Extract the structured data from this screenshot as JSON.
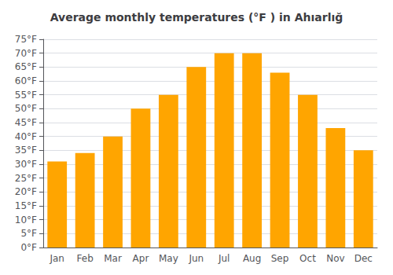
{
  "chart_data": {
    "type": "bar",
    "title": "Average monthly temperatures (°F ) in Ahıarlığ",
    "categories": [
      "Jan",
      "Feb",
      "Mar",
      "Apr",
      "May",
      "Jun",
      "Jul",
      "Aug",
      "Sep",
      "Oct",
      "Nov",
      "Dec"
    ],
    "values": [
      31,
      34,
      40,
      50,
      55,
      65,
      70,
      70,
      63,
      55,
      43,
      35
    ],
    "color": "#FFA500",
    "ylim": [
      0,
      75
    ],
    "yticks": [
      {
        "value": 0,
        "label": "0°F"
      },
      {
        "value": 5,
        "label": "5°F"
      },
      {
        "value": 10,
        "label": "10°F"
      },
      {
        "value": 15,
        "label": "15°F"
      },
      {
        "value": 20,
        "label": "20°F"
      },
      {
        "value": 25,
        "label": "25°F"
      },
      {
        "value": 30,
        "label": "30°F"
      },
      {
        "value": 35,
        "label": "35°F"
      },
      {
        "value": 40,
        "label": "40°F"
      },
      {
        "value": 45,
        "label": "45°F"
      },
      {
        "value": 50,
        "label": "50°F"
      },
      {
        "value": 55,
        "label": "55°F"
      },
      {
        "value": 60,
        "label": "60°F"
      },
      {
        "value": 65,
        "label": "65°F"
      },
      {
        "value": 70,
        "label": "70°F"
      },
      {
        "value": 75,
        "label": "75°F"
      }
    ],
    "grid": true
  }
}
